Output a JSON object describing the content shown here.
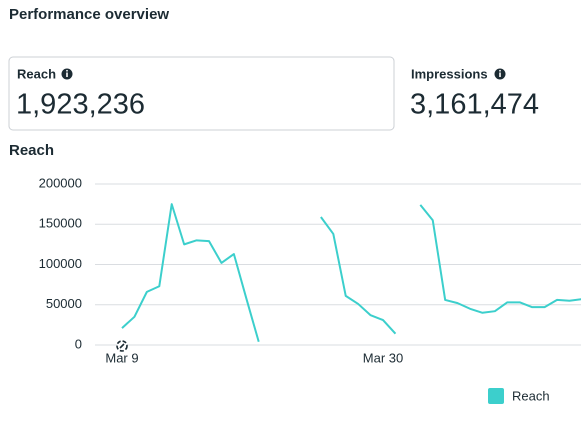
{
  "header": {
    "title": "Performance overview"
  },
  "metrics": [
    {
      "label": "Reach",
      "value": "1,923,236"
    },
    {
      "label": "Impressions",
      "value": "3,161,474"
    }
  ],
  "chart_data": {
    "type": "line",
    "title": "Reach",
    "categories": [
      "Mar 9",
      null,
      null,
      null,
      null,
      null,
      null,
      null,
      null,
      null,
      null,
      null,
      null,
      null,
      null,
      null,
      null,
      null,
      null,
      null,
      null,
      "Mar 30",
      null,
      null,
      null,
      null,
      null,
      null,
      null,
      null,
      null,
      null,
      null,
      null,
      null,
      null,
      null,
      null
    ],
    "series": [
      {
        "name": "Reach",
        "color": "#3ccfcc",
        "values": [
          21000,
          35000,
          66000,
          73000,
          175000,
          125000,
          130000,
          129000,
          102000,
          113000,
          58000,
          4000,
          null,
          null,
          null,
          null,
          159000,
          138000,
          61000,
          51000,
          37000,
          31000,
          14000,
          null,
          174000,
          155000,
          56000,
          52000,
          45000,
          40000,
          42000,
          53000,
          53000,
          47000,
          47000,
          56000,
          55000,
          57000
        ]
      }
    ],
    "ylim": [
      0,
      200000
    ],
    "yticks": [
      0,
      50000,
      100000,
      150000,
      200000
    ],
    "grid": true,
    "legend": "bottom-right"
  }
}
